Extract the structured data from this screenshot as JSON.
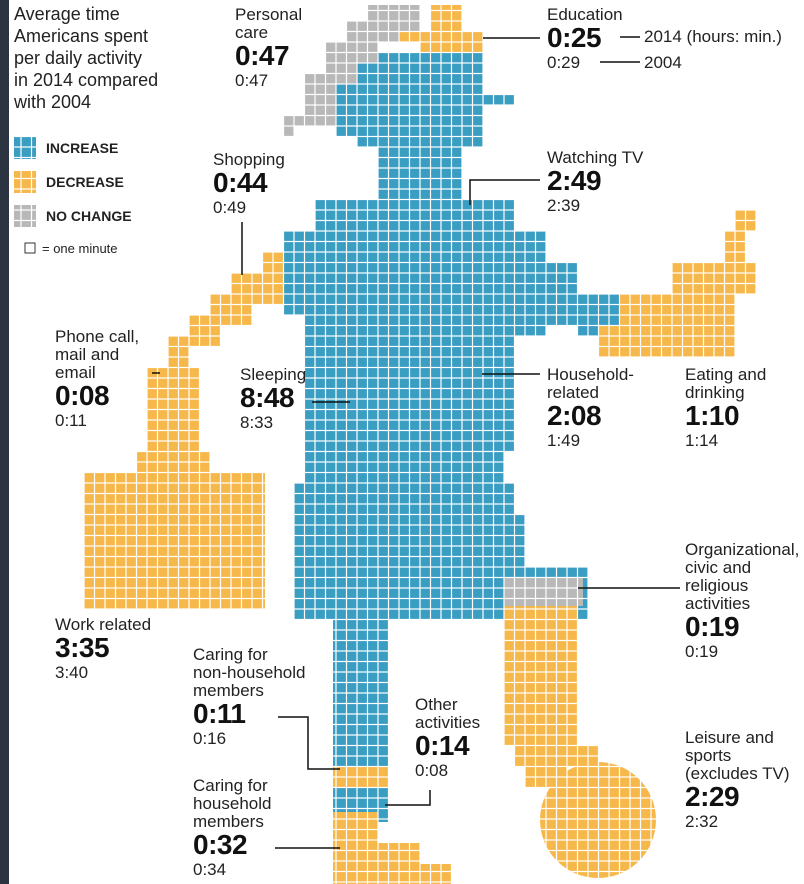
{
  "title": [
    "Average time",
    "Americans spent",
    "per daily activity",
    "in 2014 compared",
    "with 2004"
  ],
  "legend": {
    "increase": "INCREASE",
    "decrease": "DECREASE",
    "no_change": "NO CHANGE",
    "unit": "= one minute"
  },
  "annotations": {
    "current": "2014 (hours: min.)",
    "previous": "2004"
  },
  "activities": [
    {
      "label": [
        "Personal",
        "care"
      ],
      "t2014": "0:47",
      "t2004": "0:47"
    },
    {
      "label": [
        "Education"
      ],
      "t2014": "0:25",
      "t2004": "0:29"
    },
    {
      "label": [
        "Shopping"
      ],
      "t2014": "0:44",
      "t2004": "0:49"
    },
    {
      "label": [
        "Watching TV"
      ],
      "t2014": "2:49",
      "t2004": "2:39"
    },
    {
      "label": [
        "Phone call,",
        "mail and",
        "email"
      ],
      "t2014": "0:08",
      "t2004": "0:11"
    },
    {
      "label": [
        "Sleeping"
      ],
      "t2014": "8:48",
      "t2004": "8:33"
    },
    {
      "label": [
        "Household-",
        "related"
      ],
      "t2014": "2:08",
      "t2004": "1:49"
    },
    {
      "label": [
        "Eating and",
        "drinking"
      ],
      "t2014": "1:10",
      "t2004": "1:14"
    },
    {
      "label": [
        "Organizational,",
        "civic and",
        "religious",
        "activities"
      ],
      "t2014": "0:19",
      "t2004": "0:19"
    },
    {
      "label": [
        "Work related"
      ],
      "t2014": "3:35",
      "t2004": "3:40"
    },
    {
      "label": [
        "Caring for",
        "non-household",
        "members"
      ],
      "t2014": "0:11",
      "t2004": "0:16"
    },
    {
      "label": [
        "Other",
        "activities"
      ],
      "t2014": "0:14",
      "t2004": "0:08"
    },
    {
      "label": [
        "Leisure and",
        "sports",
        "(excludes TV)"
      ],
      "t2014": "2:29",
      "t2004": "2:32"
    },
    {
      "label": [
        "Caring for",
        "household",
        "members"
      ],
      "t2014": "0:32",
      "t2004": "0:34"
    }
  ]
}
